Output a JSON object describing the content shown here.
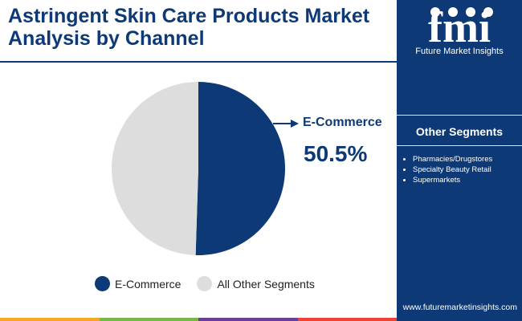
{
  "header": {
    "title": "Astringent Skin Care Products Market Analysis by Channel"
  },
  "chart_data": {
    "type": "pie",
    "slices": [
      {
        "label": "E-Commerce",
        "value": 50.5,
        "color": "#0d3a76"
      },
      {
        "label": "All Other Segments",
        "value": 49.5,
        "color": "#dddddd"
      }
    ],
    "callout": {
      "label": "E-Commerce",
      "value": "50.5%"
    },
    "legend": [
      "E-Commerce",
      "All Other Segments"
    ],
    "legend_placement": "bottom"
  },
  "sidebar": {
    "logo_text": "fmi",
    "logo_subtitle": "Future Market Insights",
    "segments_heading": "Other Segments",
    "segments": [
      "Pharmacies/Drugstores",
      "Specialty Beauty Retail",
      "Supermarkets"
    ],
    "website": "www.futuremarketinsights.com"
  },
  "colors": {
    "brand": "#0d3a76",
    "other": "#dddddd",
    "bar": [
      "#f5a623",
      "#7ab648",
      "#6a3f99",
      "#ef4136"
    ]
  }
}
